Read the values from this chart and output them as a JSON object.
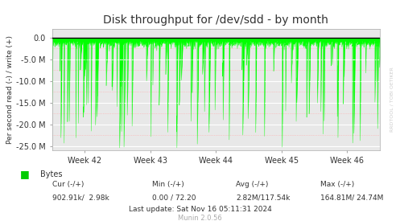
{
  "title": "Disk throughput for /dev/sdd - by month",
  "ylabel": "Per second read (-) / write (+)",
  "xlabel_ticks": [
    "Week 42",
    "Week 43",
    "Week 44",
    "Week 45",
    "Week 46"
  ],
  "ylim": [
    -26000000,
    2000000
  ],
  "yticks": [
    0.0,
    -5000000,
    -10000000,
    -15000000,
    -20000000,
    -25000000
  ],
  "ytick_labels": [
    "0.0",
    "-5.0 M",
    "-10.0 M",
    "-15.0 M",
    "-20.0 M",
    "-25.0 M"
  ],
  "bg_color": "#ffffff",
  "plot_bg_color": "#e8e8e8",
  "grid_color_major": "#ffffff",
  "grid_color_minor": "#ffaaaa",
  "line_color": "#00ff00",
  "zero_line_color": "#000000",
  "legend_label": "Bytes",
  "legend_color": "#00cc00",
  "footer_line1": "Cur (-/+)                Min (-/+)               Avg (-/+)                    Max (-/+)",
  "footer_line2": "902.91k/  2.98k          0.00 / 72.20          2.82M/117.54k          164.81M/ 24.74M",
  "footer_line3": "Last update: Sat Nov 16 05:11:31 2024",
  "munin_label": "Munin 2.0.56",
  "rrdtool_label": "RRDTOOL / TOBI OETIKER",
  "num_points": 1500,
  "seed": 42
}
